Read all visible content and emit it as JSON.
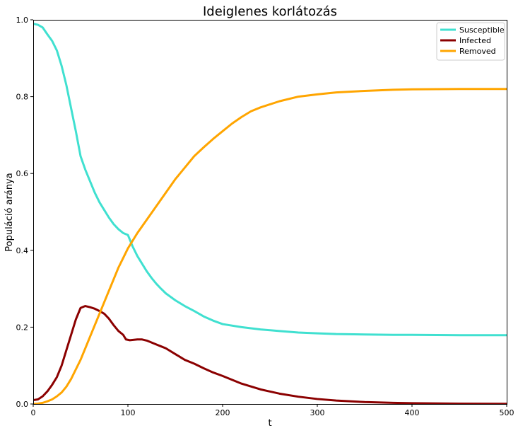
{
  "chart_data": {
    "type": "line",
    "title": "Ideiglenes korlátozás",
    "xlabel": "t",
    "ylabel": "Populáció aránya",
    "xlim": [
      0,
      500
    ],
    "ylim": [
      0,
      1
    ],
    "xticks": [
      0,
      100,
      200,
      300,
      400,
      500
    ],
    "yticks": [
      0,
      0.2,
      0.4,
      0.6,
      0.8,
      1
    ],
    "xtick_labels": [
      "0",
      "100",
      "200",
      "300",
      "400",
      "500"
    ],
    "ytick_labels": [
      "0.0",
      "0.2",
      "0.4",
      "0.6",
      "0.8",
      "1.0"
    ],
    "grid": false,
    "legend_position": "top-right",
    "series": [
      {
        "name": "Susceptible",
        "color": "#40e0d0",
        "x": [
          0,
          5,
          10,
          15,
          20,
          25,
          30,
          35,
          40,
          45,
          50,
          55,
          60,
          65,
          70,
          75,
          80,
          85,
          90,
          95,
          100,
          105,
          110,
          115,
          120,
          125,
          130,
          135,
          140,
          150,
          160,
          170,
          180,
          190,
          200,
          220,
          240,
          260,
          280,
          300,
          320,
          350,
          380,
          400,
          450,
          500
        ],
        "y": [
          0.99,
          0.987,
          0.98,
          0.962,
          0.945,
          0.92,
          0.88,
          0.83,
          0.77,
          0.71,
          0.645,
          0.61,
          0.58,
          0.55,
          0.525,
          0.505,
          0.485,
          0.468,
          0.455,
          0.445,
          0.44,
          0.41,
          0.385,
          0.365,
          0.345,
          0.328,
          0.313,
          0.3,
          0.288,
          0.27,
          0.255,
          0.242,
          0.228,
          0.217,
          0.208,
          0.2,
          0.194,
          0.19,
          0.186,
          0.184,
          0.182,
          0.181,
          0.18,
          0.18,
          0.179,
          0.179
        ]
      },
      {
        "name": "Infected",
        "color": "#8b0000",
        "x": [
          0,
          5,
          10,
          15,
          20,
          25,
          30,
          35,
          40,
          45,
          50,
          55,
          60,
          65,
          70,
          75,
          80,
          85,
          90,
          95,
          98,
          102,
          110,
          115,
          120,
          125,
          130,
          135,
          140,
          150,
          160,
          170,
          180,
          190,
          200,
          220,
          240,
          260,
          280,
          300,
          320,
          350,
          380,
          400,
          450,
          500
        ],
        "y": [
          0.01,
          0.012,
          0.02,
          0.033,
          0.05,
          0.07,
          0.1,
          0.14,
          0.18,
          0.22,
          0.25,
          0.255,
          0.252,
          0.248,
          0.242,
          0.235,
          0.222,
          0.205,
          0.19,
          0.18,
          0.168,
          0.166,
          0.168,
          0.168,
          0.165,
          0.16,
          0.155,
          0.15,
          0.145,
          0.13,
          0.115,
          0.105,
          0.093,
          0.082,
          0.073,
          0.053,
          0.038,
          0.027,
          0.019,
          0.013,
          0.009,
          0.005,
          0.003,
          0.002,
          0.001,
          0.0005
        ]
      },
      {
        "name": "Removed",
        "color": "#ffa500",
        "x": [
          0,
          5,
          10,
          15,
          20,
          25,
          30,
          35,
          40,
          45,
          50,
          55,
          60,
          65,
          70,
          75,
          80,
          85,
          90,
          95,
          100,
          110,
          120,
          130,
          140,
          150,
          160,
          170,
          180,
          190,
          200,
          210,
          220,
          230,
          240,
          260,
          280,
          300,
          320,
          350,
          380,
          400,
          450,
          500
        ],
        "y": [
          0,
          0.001,
          0.003,
          0.007,
          0.012,
          0.02,
          0.03,
          0.045,
          0.065,
          0.09,
          0.115,
          0.145,
          0.175,
          0.205,
          0.235,
          0.265,
          0.295,
          0.325,
          0.355,
          0.38,
          0.405,
          0.445,
          0.48,
          0.515,
          0.55,
          0.585,
          0.615,
          0.645,
          0.668,
          0.69,
          0.71,
          0.73,
          0.747,
          0.762,
          0.772,
          0.788,
          0.8,
          0.806,
          0.811,
          0.815,
          0.818,
          0.819,
          0.82,
          0.82
        ]
      }
    ]
  }
}
